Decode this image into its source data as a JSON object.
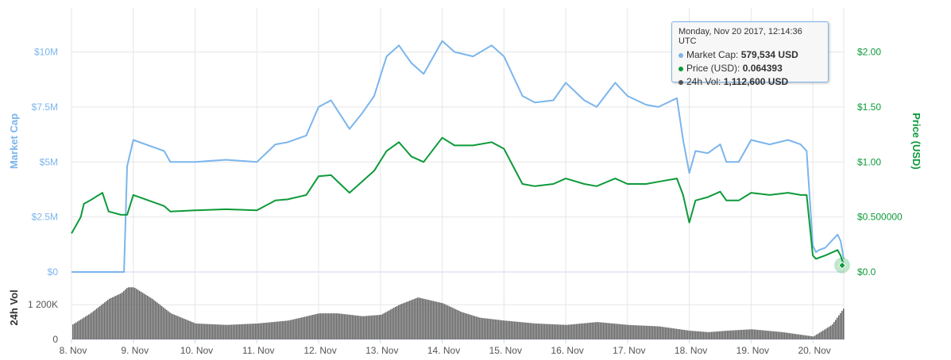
{
  "tooltip": {
    "date": "Monday, Nov 20 2017, 12:14:36 UTC",
    "rows": [
      {
        "label": "Market Cap",
        "value": "579,534 USD",
        "color": "#7cb5ec"
      },
      {
        "label": "Price (USD)",
        "value": "0.064393",
        "color": "#0d9a3a"
      },
      {
        "label": "24h Vol",
        "value": "1,112,600 USD",
        "color": "#555555"
      }
    ]
  },
  "chart_data": {
    "type": "line",
    "x_tick_labels": [
      "8. Nov",
      "9. Nov",
      "10. Nov",
      "11. Nov",
      "12. Nov",
      "13. Nov",
      "14. Nov",
      "15. Nov",
      "16. Nov",
      "17. Nov",
      "18. Nov",
      "19. Nov",
      "20. Nov"
    ],
    "y_left": {
      "title": "Market Cap",
      "ticks": [
        "$0",
        "$2.5M",
        "$5M",
        "$7.5M",
        "$10M"
      ],
      "range": [
        0,
        12000000
      ]
    },
    "y_right": {
      "title": "Price (USD)",
      "ticks": [
        "$0.0",
        "$0.500000",
        "$1.00",
        "$1.50",
        "$2.00"
      ],
      "range": [
        0,
        2.4
      ]
    },
    "y_volume": {
      "title": "24h Vol",
      "ticks": [
        "0",
        "1 200K"
      ],
      "range": [
        0,
        2000000
      ]
    },
    "x_range_days": [
      8,
      20.5
    ],
    "grid": true,
    "series": [
      {
        "name": "Market Cap",
        "color": "#7cb5ec",
        "axis": "left",
        "x": [
          8.0,
          8.85,
          8.9,
          9.0,
          9.5,
          9.6,
          10.0,
          10.5,
          11.0,
          11.3,
          11.5,
          11.8,
          12.0,
          12.2,
          12.5,
          12.7,
          12.9,
          13.1,
          13.3,
          13.5,
          13.7,
          14.0,
          14.2,
          14.5,
          14.8,
          15.0,
          15.3,
          15.5,
          15.8,
          16.0,
          16.3,
          16.5,
          16.8,
          17.0,
          17.3,
          17.5,
          17.8,
          17.9,
          18.0,
          18.1,
          18.3,
          18.5,
          18.6,
          18.8,
          19.0,
          19.3,
          19.6,
          19.8,
          19.9,
          20.0,
          20.05,
          20.1,
          20.2,
          20.4,
          20.45,
          20.5
        ],
        "values": [
          0,
          0,
          4800000,
          6000000,
          5500000,
          5000000,
          5000000,
          5100000,
          5000000,
          5800000,
          5900000,
          6200000,
          7500000,
          7800000,
          6500000,
          7200000,
          8000000,
          9800000,
          10300000,
          9500000,
          9000000,
          10500000,
          10000000,
          9800000,
          10300000,
          9800000,
          8000000,
          7700000,
          7800000,
          8600000,
          7800000,
          7500000,
          8600000,
          8000000,
          7600000,
          7500000,
          7900000,
          6000000,
          4500000,
          5500000,
          5400000,
          5800000,
          5000000,
          5000000,
          6000000,
          5800000,
          6000000,
          5800000,
          5500000,
          1200000,
          900000,
          1000000,
          1100000,
          1700000,
          1400000,
          600000
        ]
      },
      {
        "name": "Price (USD)",
        "color": "#0d9a3a",
        "axis": "right",
        "x": [
          8.0,
          8.05,
          8.15,
          8.2,
          8.3,
          8.5,
          8.6,
          8.8,
          8.9,
          9.0,
          9.5,
          9.6,
          10.0,
          10.5,
          11.0,
          11.3,
          11.5,
          11.8,
          12.0,
          12.2,
          12.5,
          12.7,
          12.9,
          13.1,
          13.3,
          13.5,
          13.7,
          14.0,
          14.2,
          14.5,
          14.8,
          15.0,
          15.3,
          15.5,
          15.8,
          16.0,
          16.3,
          16.5,
          16.8,
          17.0,
          17.3,
          17.5,
          17.8,
          17.9,
          18.0,
          18.1,
          18.3,
          18.5,
          18.6,
          18.8,
          19.0,
          19.3,
          19.6,
          19.8,
          19.9,
          20.0,
          20.05,
          20.1,
          20.2,
          20.4,
          20.45,
          20.5
        ],
        "values": [
          0.35,
          0.4,
          0.5,
          0.62,
          0.65,
          0.72,
          0.55,
          0.52,
          0.52,
          0.7,
          0.6,
          0.55,
          0.56,
          0.57,
          0.56,
          0.65,
          0.66,
          0.7,
          0.87,
          0.88,
          0.72,
          0.82,
          0.92,
          1.1,
          1.18,
          1.05,
          1.0,
          1.22,
          1.15,
          1.15,
          1.18,
          1.12,
          0.8,
          0.78,
          0.8,
          0.85,
          0.8,
          0.78,
          0.85,
          0.8,
          0.8,
          0.82,
          0.85,
          0.7,
          0.45,
          0.65,
          0.68,
          0.73,
          0.65,
          0.65,
          0.72,
          0.7,
          0.72,
          0.7,
          0.7,
          0.15,
          0.12,
          0.13,
          0.15,
          0.2,
          0.15,
          0.06
        ]
      },
      {
        "name": "24h Vol",
        "color": "#555555",
        "axis": "volume",
        "x": [
          8.0,
          8.3,
          8.6,
          8.8,
          8.9,
          9.0,
          9.3,
          9.6,
          10.0,
          10.5,
          11.0,
          11.5,
          12.0,
          12.3,
          12.7,
          13.0,
          13.3,
          13.6,
          14.0,
          14.3,
          14.6,
          15.0,
          15.5,
          16.0,
          16.5,
          17.0,
          17.5,
          18.0,
          18.3,
          18.6,
          19.0,
          19.5,
          20.0,
          20.3,
          20.5
        ],
        "values": [
          500000,
          900000,
          1400000,
          1600000,
          1800000,
          1800000,
          1400000,
          900000,
          550000,
          500000,
          550000,
          650000,
          900000,
          900000,
          800000,
          850000,
          1200000,
          1450000,
          1250000,
          950000,
          750000,
          650000,
          550000,
          500000,
          600000,
          500000,
          450000,
          300000,
          250000,
          300000,
          350000,
          250000,
          100000,
          500000,
          1100000
        ]
      }
    ]
  }
}
